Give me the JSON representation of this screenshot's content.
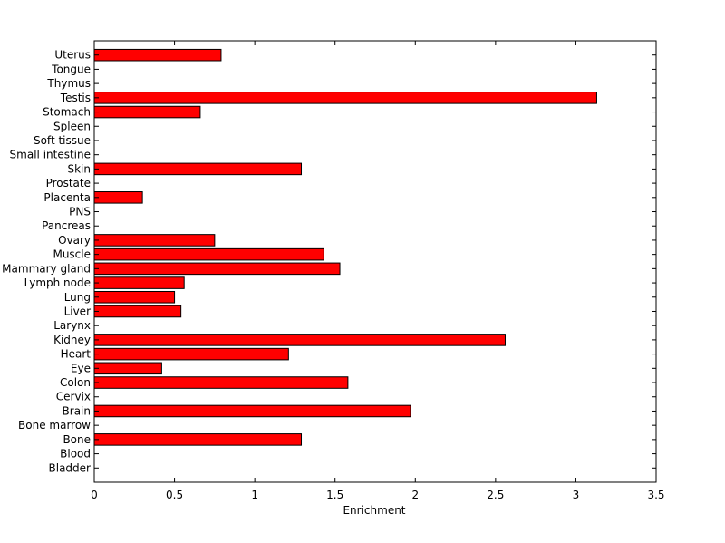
{
  "chart_data": {
    "type": "bar",
    "orientation": "horizontal",
    "title": "",
    "xlabel": "Enrichment",
    "ylabel": "",
    "xlim": [
      0,
      3.5
    ],
    "xticks": [
      0,
      0.5,
      1,
      1.5,
      2,
      2.5,
      3,
      3.5
    ],
    "xtick_labels": [
      "0",
      "0.5",
      "1",
      "1.5",
      "2",
      "2.5",
      "3",
      "3.5"
    ],
    "grid": false,
    "legend": "none",
    "bar_color": "#ff0000",
    "categories": [
      "Bladder",
      "Blood",
      "Bone",
      "Bone marrow",
      "Brain",
      "Cervix",
      "Colon",
      "Eye",
      "Heart",
      "Kidney",
      "Larynx",
      "Liver",
      "Lung",
      "Lymph node",
      "Mammary gland",
      "Muscle",
      "Ovary",
      "Pancreas",
      "PNS",
      "Placenta",
      "Prostate",
      "Skin",
      "Small intestine",
      "Soft tissue",
      "Spleen",
      "Stomach",
      "Testis",
      "Thymus",
      "Tongue",
      "Uterus"
    ],
    "values": [
      0,
      0,
      1.29,
      0,
      1.97,
      0,
      1.58,
      0.42,
      1.21,
      2.56,
      0,
      0.54,
      0.5,
      0.56,
      1.53,
      1.43,
      0.75,
      0,
      0,
      0.3,
      0,
      1.29,
      0,
      0,
      0,
      0.66,
      3.13,
      0,
      0,
      0.79
    ]
  }
}
